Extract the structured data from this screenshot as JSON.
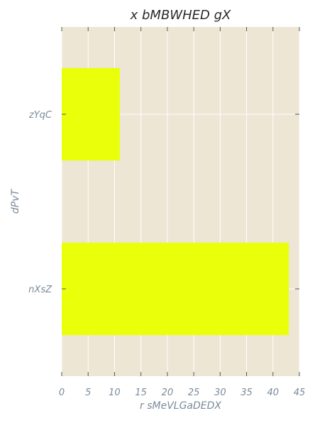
{
  "chart_data": {
    "type": "bar",
    "orientation": "horizontal",
    "title": "x bMBWHED gX",
    "xlabel": "r sMeVLGaDEDX",
    "ylabel": "dPvT",
    "categories": [
      "zYqC",
      "nXsZ"
    ],
    "values": [
      11,
      43
    ],
    "xlim": [
      0,
      45
    ],
    "xticks": [
      0,
      5,
      10,
      15,
      20,
      25,
      30,
      35,
      40,
      45
    ],
    "grid": true,
    "colors": {
      "bar": "#eaff0a",
      "background": "#ede6d5",
      "grid": "#ffffff",
      "tick_label": "#7a8a99",
      "title": "#2b2b2b"
    }
  }
}
